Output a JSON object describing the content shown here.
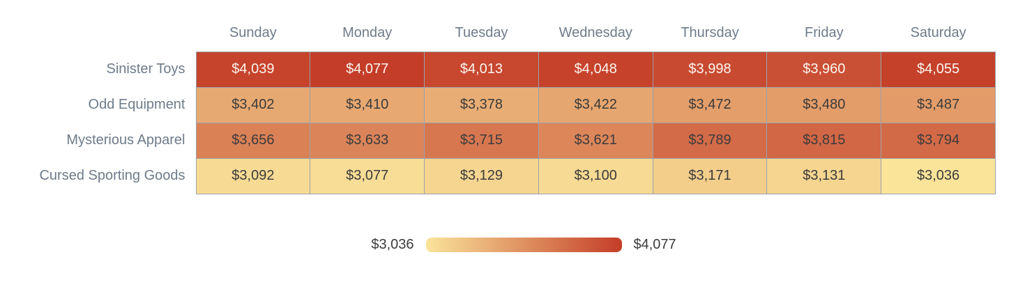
{
  "colors": {
    "background": "#ffffff",
    "label_text": "#6e7b8b",
    "cell_text_dark": "#3b3b3b",
    "cell_text_light": "#fdf6f0",
    "cell_border": "#9aa2ab"
  },
  "chart_data": {
    "type": "heatmap",
    "title": "",
    "categories_x": [
      "Sunday",
      "Monday",
      "Tuesday",
      "Wednesday",
      "Thursday",
      "Friday",
      "Saturday"
    ],
    "categories_y": [
      "Sinister Toys",
      "Odd Equipment",
      "Mysterious Apparel",
      "Cursed Sporting Goods"
    ],
    "series": [
      {
        "name": "Sinister Toys",
        "values": [
          4039,
          4077,
          4013,
          4048,
          3998,
          3960,
          4055
        ]
      },
      {
        "name": "Odd Equipment",
        "values": [
          3402,
          3410,
          3378,
          3422,
          3472,
          3480,
          3487
        ]
      },
      {
        "name": "Mysterious Apparel",
        "values": [
          3656,
          3633,
          3715,
          3621,
          3789,
          3815,
          3794
        ]
      },
      {
        "name": "Cursed Sporting Goods",
        "values": [
          3092,
          3077,
          3129,
          3100,
          3171,
          3131,
          3036
        ]
      }
    ],
    "value_prefix": "$",
    "colormap": {
      "min_value": 3036,
      "max_value": 4077,
      "min_color": "#FAE49A",
      "max_color": "#C43D28",
      "light_text_luminance_threshold": 120
    },
    "legend": {
      "position": "bottom-center",
      "min_label": "$3,036",
      "max_label": "$4,077"
    }
  }
}
